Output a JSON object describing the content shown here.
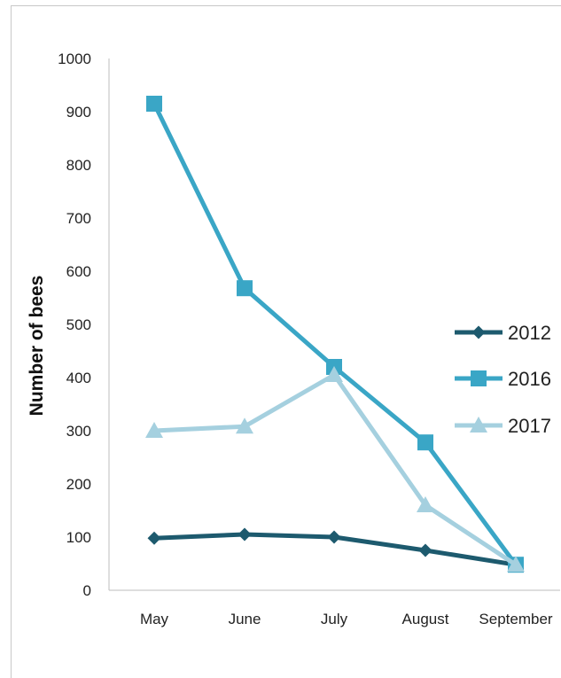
{
  "chart_data": {
    "type": "line",
    "title": "",
    "xlabel": "",
    "ylabel": "Number of bees",
    "categories": [
      "May",
      "June",
      "July",
      "August",
      "September"
    ],
    "ylim": [
      0,
      1000
    ],
    "yticks": [
      0,
      100,
      200,
      300,
      400,
      500,
      600,
      700,
      800,
      900,
      1000
    ],
    "grid": false,
    "legend_position": "right",
    "series": [
      {
        "name": "2012",
        "values": [
          98,
          105,
          100,
          75,
          48
        ],
        "color": "#1d5a6e",
        "marker": "diamond"
      },
      {
        "name": "2016",
        "values": [
          915,
          568,
          420,
          278,
          48
        ],
        "color": "#3aa6c6",
        "marker": "square"
      },
      {
        "name": "2017",
        "values": [
          300,
          308,
          405,
          160,
          48
        ],
        "color": "#a5d0df",
        "marker": "triangle"
      }
    ]
  }
}
